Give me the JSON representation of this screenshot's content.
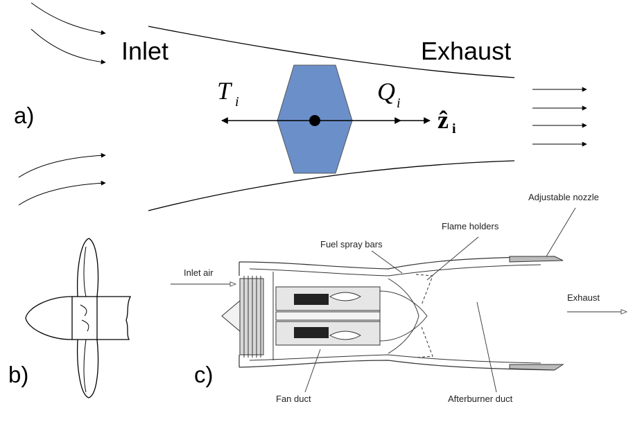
{
  "panel_a": {
    "panel_label": "a)",
    "inlet_label": "Inlet",
    "exhaust_label": "Exhaust",
    "thrust_symbol": "T",
    "thrust_subscript": "i",
    "torque_symbol": "Q",
    "torque_subscript": "i",
    "axis_symbol": "ẑ",
    "axis_subscript": "i",
    "body_color": "#6b8fc9"
  },
  "panel_b": {
    "panel_label": "b)"
  },
  "panel_c": {
    "panel_label": "c)",
    "labels": {
      "inlet_air": "Inlet air",
      "fuel_spray_bars": "Fuel spray bars",
      "flame_holders": "Flame holders",
      "adjustable_nozzle": "Adjustable nozzle",
      "exhaust": "Exhaust",
      "fan_duct": "Fan duct",
      "afterburner_duct": "Afterburner duct"
    }
  }
}
